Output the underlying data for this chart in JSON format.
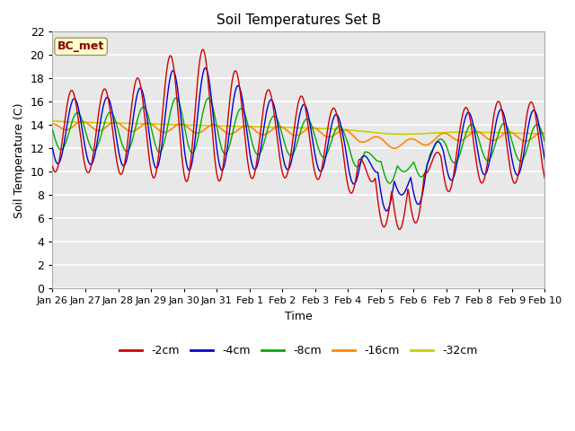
{
  "title": "Soil Temperatures Set B",
  "xlabel": "Time",
  "ylabel": "Soil Temperature (C)",
  "annotation": "BC_met",
  "ylim": [
    0,
    22
  ],
  "yticks": [
    0,
    2,
    4,
    6,
    8,
    10,
    12,
    14,
    16,
    18,
    20,
    22
  ],
  "xtick_labels": [
    "Jan 26",
    "Jan 27",
    "Jan 28",
    "Jan 29",
    "Jan 30",
    "Jan 31",
    "Feb 1",
    "Feb 2",
    "Feb 3",
    "Feb 4",
    "Feb 5",
    "Feb 6",
    "Feb 7",
    "Feb 8",
    "Feb 9",
    "Feb 10"
  ],
  "colors": {
    "-2cm": "#cc0000",
    "-4cm": "#0000cc",
    "-8cm": "#00aa00",
    "-16cm": "#ff8800",
    "-32cm": "#cccc00"
  },
  "legend_labels": [
    "-2cm",
    "-4cm",
    "-8cm",
    "-16cm",
    "-32cm"
  ],
  "plot_bg_color": "#e8e8e8",
  "grid_color": "#ffffff",
  "figsize": [
    6.4,
    4.8
  ],
  "dpi": 100
}
